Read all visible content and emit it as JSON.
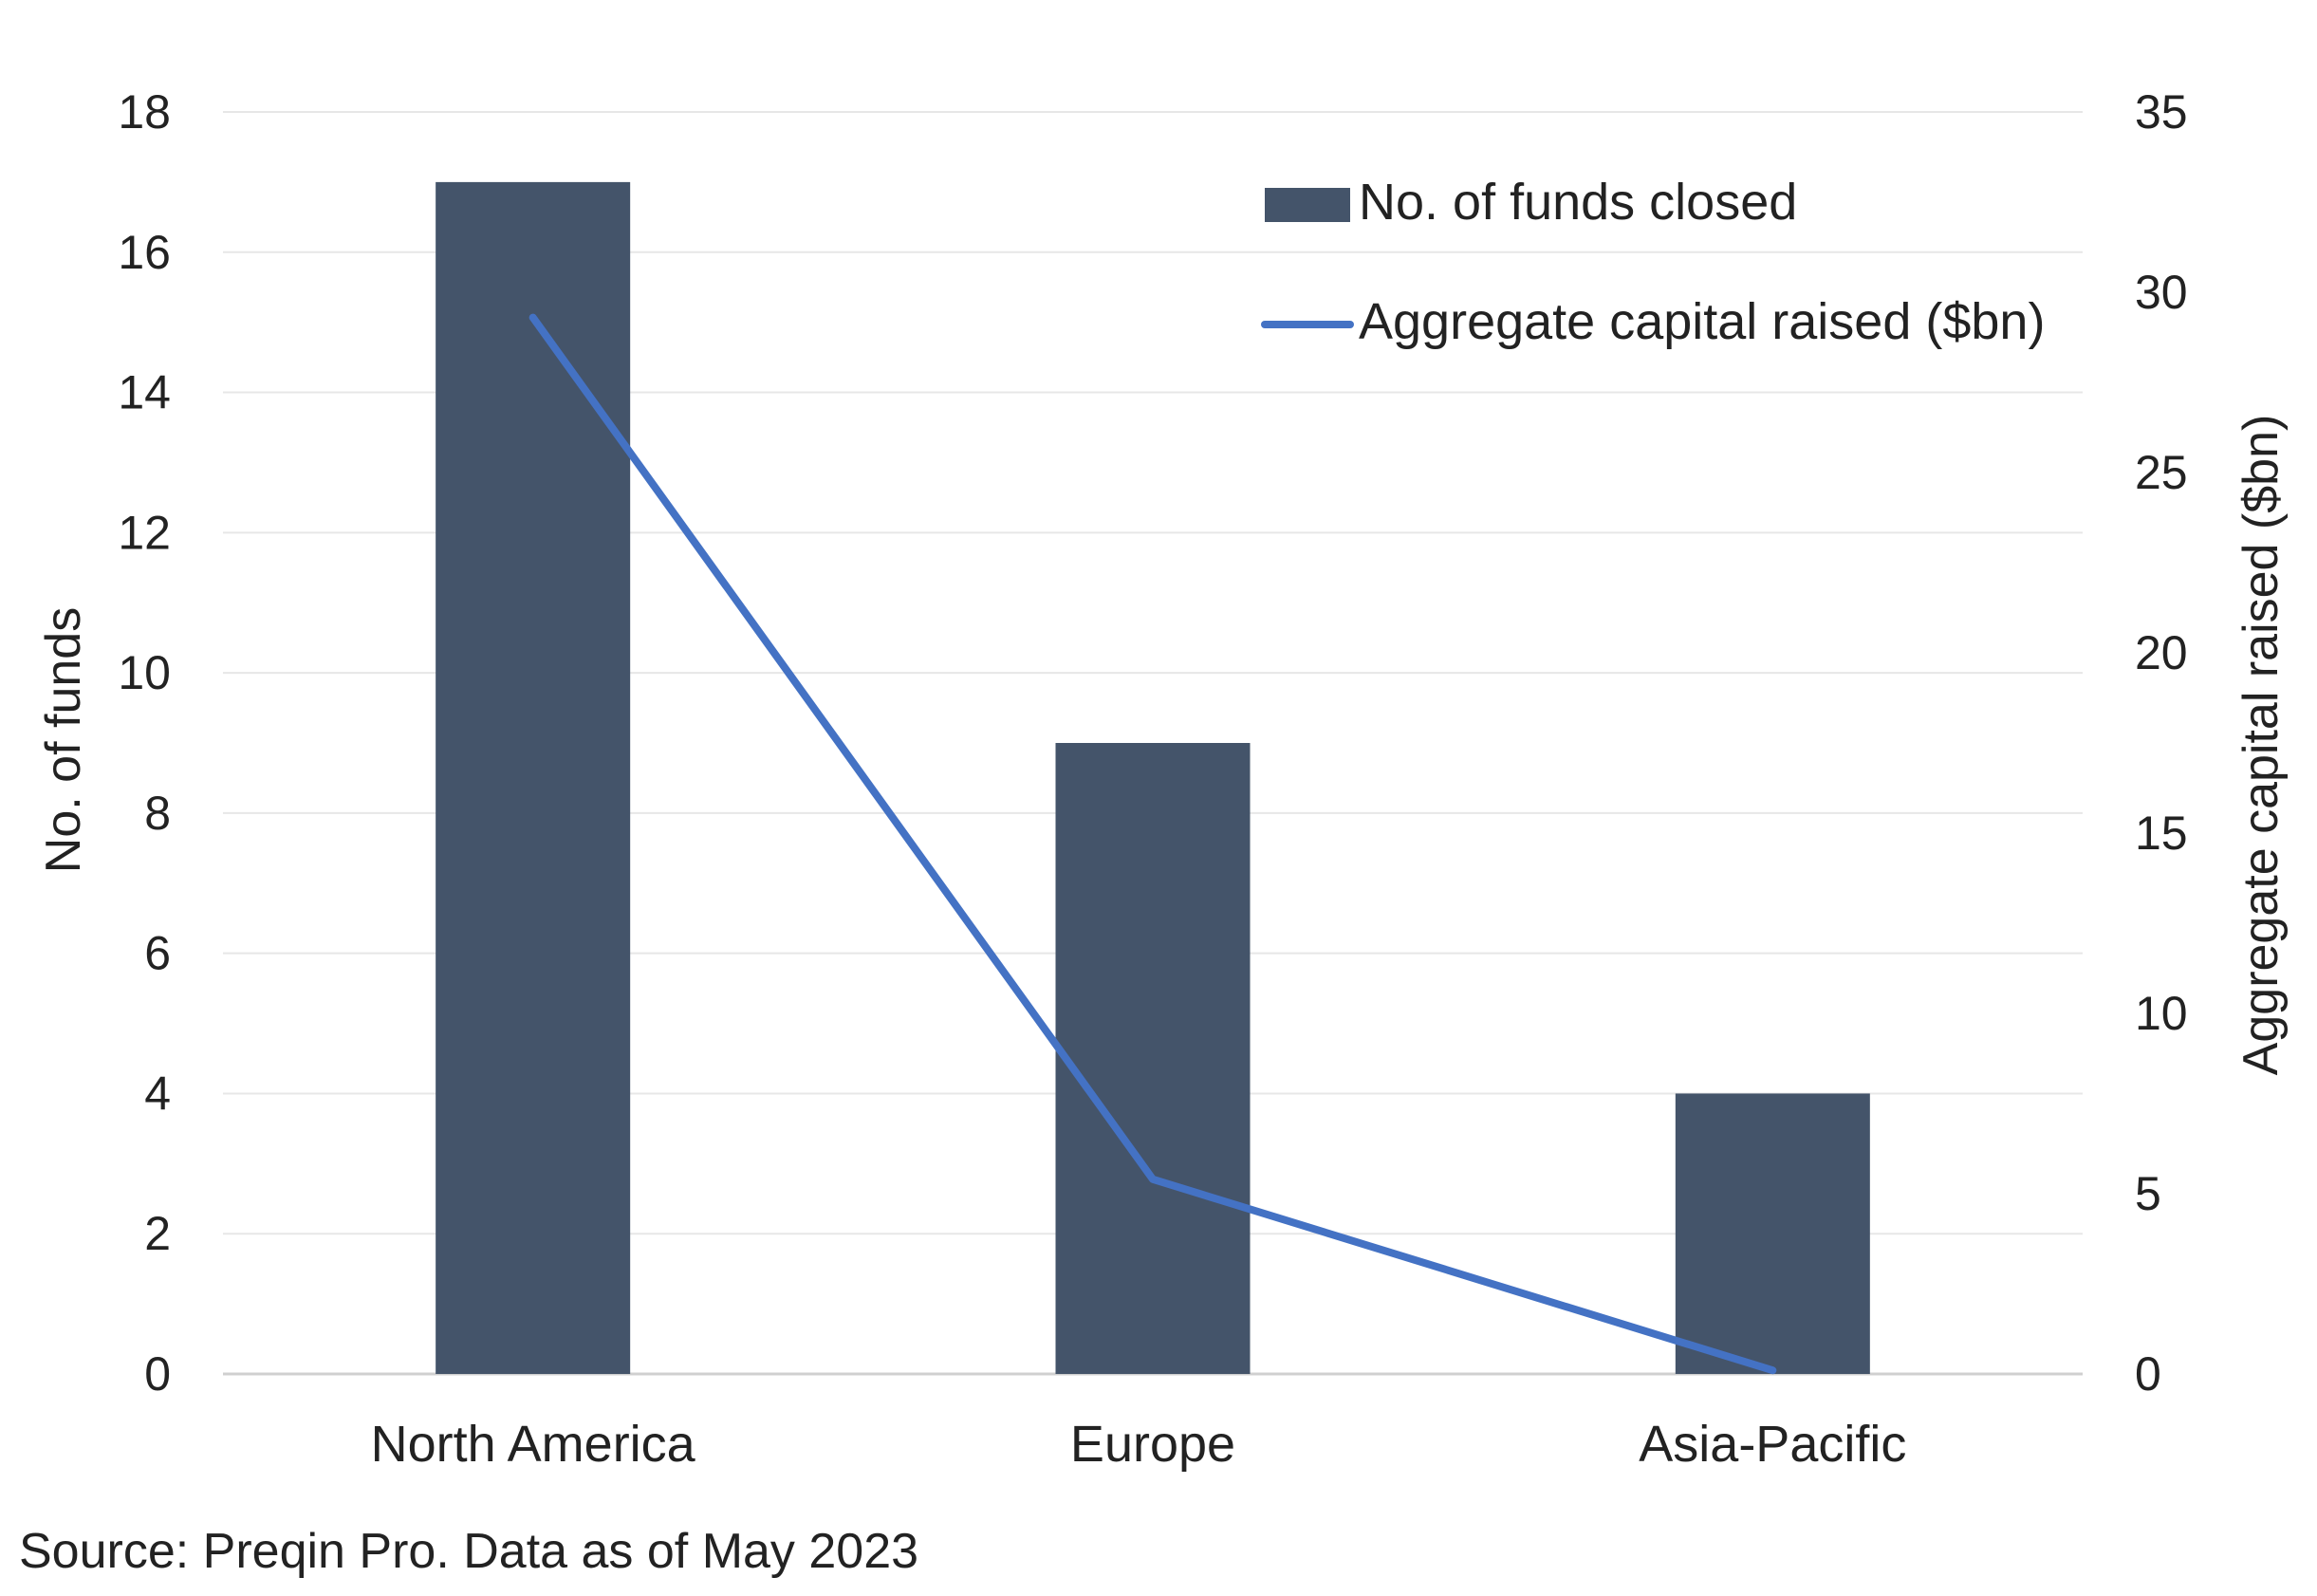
{
  "chart_data": {
    "type": "bar",
    "categories": [
      "North America",
      "Europe",
      "Asia-Pacific"
    ],
    "series": [
      {
        "name": "No. of funds closed",
        "type": "bar",
        "axis": "left",
        "color": "#44546A",
        "values": [
          17,
          9,
          4
        ]
      },
      {
        "name": "Aggregate capital raised ($bn)",
        "type": "line",
        "axis": "right",
        "color": "#4472C4",
        "values": [
          29.3,
          5.4,
          0.1
        ]
      }
    ],
    "y_left": {
      "label": "No. of funds",
      "ylim": [
        0,
        18
      ],
      "ticks": [
        "0",
        "2",
        "4",
        "6",
        "8",
        "10",
        "12",
        "14",
        "16",
        "18"
      ]
    },
    "y_right": {
      "label": "Aggregate capital raised ($bn)",
      "ylim": [
        0,
        35
      ],
      "ticks": [
        "0",
        "5",
        "10",
        "15",
        "20",
        "25",
        "30",
        "35"
      ]
    },
    "grid": true,
    "legend_position": "top-right",
    "gridline_color": "#E7E7E7"
  },
  "source_note": "Source: Preqin Pro. Data as of May 2023"
}
